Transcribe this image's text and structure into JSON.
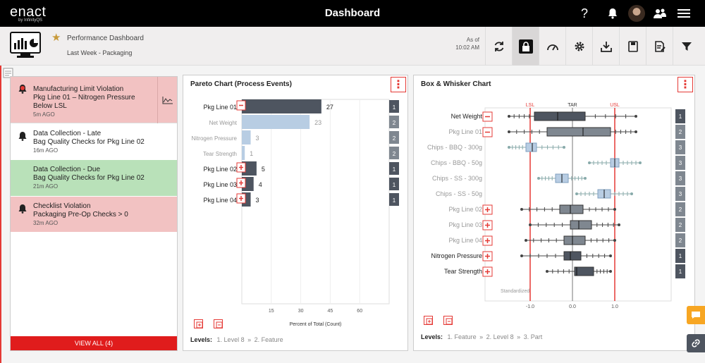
{
  "topbar": {
    "logo": "enact",
    "logo_sub": "by InfinityQS",
    "title": "Dashboard",
    "help_icon": "help-icon"
  },
  "subbar": {
    "title": "Performance Dashboard",
    "filter": "Last Week - Packaging",
    "asof_label": "As of",
    "asof_time": "10:02 AM"
  },
  "alerts": {
    "items": [
      {
        "lines": [
          "Manufacturing Limit Violation",
          "Pkg Line 01 – Nitrogen Pressure",
          "Below LSL"
        ],
        "time": "5m AGO",
        "color": "#f2c2c2",
        "icon": "alarm-bell-icon"
      },
      {
        "lines": [
          "Data Collection - Late",
          "Bag Quality Checks for Pkg Line 02"
        ],
        "time": "16m AGO",
        "color": "#ffffff",
        "icon": "bell-icon"
      },
      {
        "lines": [
          "Data Collection - Due",
          "Bag Quality Checks for Pkg Line 02"
        ],
        "time": "21m AGO",
        "color": "#b9e1b9",
        "icon": ""
      },
      {
        "lines": [
          "Checklist Violation",
          "Packaging Pre-Op Checks > 0"
        ],
        "time": "32m AGO",
        "color": "#f2c2c2",
        "icon": "bell-icon"
      }
    ],
    "view_all": "VIEW ALL  (4)"
  },
  "pareto": {
    "title": "Pareto Chart (Process Events)",
    "xlabel": "Percent of Total (Count)",
    "levels_label": "Levels:",
    "levels": [
      "1. Level 8",
      "2. Feature"
    ],
    "rows": [
      {
        "label": "Pkg Line 01",
        "value": 27,
        "badge": "1",
        "dark": true,
        "expand": "minus"
      },
      {
        "label": "Net Weight",
        "value": 23,
        "badge": "2",
        "dark": false,
        "expand": ""
      },
      {
        "label": "Nitrogen Pressure",
        "value": 3,
        "badge": "2",
        "dark": false,
        "expand": ""
      },
      {
        "label": "Tear Strength",
        "value": 1,
        "badge": "2",
        "dark": false,
        "expand": ""
      },
      {
        "label": "Pkg Line 02",
        "value": 5,
        "badge": "1",
        "dark": true,
        "expand": "plus"
      },
      {
        "label": "Pkg Line 03",
        "value": 4,
        "badge": "1",
        "dark": true,
        "expand": "plus"
      },
      {
        "label": "Pkg Line 04",
        "value": 3,
        "badge": "1",
        "dark": true,
        "expand": "plus"
      }
    ],
    "xticks": [
      15,
      30,
      45,
      60
    ]
  },
  "box": {
    "title": "Box & Whisker Chart",
    "levels_label": "Levels:",
    "levels": [
      "1. Feature",
      "2. Level 8",
      "3. Part"
    ],
    "lsl": "LSL",
    "tar": "TAR",
    "usl": "USL",
    "corner_note": "Standardized",
    "xticks": [
      "-1.0",
      "0.0",
      "1.0"
    ],
    "rows": [
      {
        "label": "Net Weight",
        "badge": "1",
        "tone": "dark",
        "expand": "minus",
        "min": -1.5,
        "q1": -0.9,
        "med": -0.35,
        "q3": 0.3,
        "max": 1.5
      },
      {
        "label": "Pkg Line 01",
        "badge": "2",
        "tone": "mid",
        "expand": "minus",
        "min": -1.5,
        "q1": -0.6,
        "med": 0.25,
        "q3": 0.9,
        "max": 1.5
      },
      {
        "label": "Chips - BBQ - 300g",
        "badge": "3",
        "tone": "light",
        "expand": "",
        "min": -1.5,
        "q1": -1.1,
        "med": -0.95,
        "q3": -0.85,
        "max": -0.2
      },
      {
        "label": "Chips - BBQ - 50g",
        "badge": "3",
        "tone": "light",
        "expand": "",
        "min": 0.4,
        "q1": 0.9,
        "med": 1.0,
        "q3": 1.1,
        "max": 1.6
      },
      {
        "label": "Chips - SS - 300g",
        "badge": "3",
        "tone": "light",
        "expand": "",
        "min": -0.8,
        "q1": -0.4,
        "med": -0.25,
        "q3": -0.1,
        "max": 0.3
      },
      {
        "label": "Chips - SS - 50g",
        "badge": "3",
        "tone": "light",
        "expand": "",
        "min": 0.1,
        "q1": 0.6,
        "med": 0.75,
        "q3": 0.9,
        "max": 1.4
      },
      {
        "label": "Pkg Line 02",
        "badge": "2",
        "tone": "mid",
        "expand": "plus",
        "min": -1.2,
        "q1": -0.3,
        "med": -0.05,
        "q3": 0.25,
        "max": 1.0
      },
      {
        "label": "Pkg Line 03",
        "badge": "2",
        "tone": "mid",
        "expand": "plus",
        "min": -1.0,
        "q1": -0.05,
        "med": 0.15,
        "q3": 0.45,
        "max": 1.1
      },
      {
        "label": "Pkg Line 04",
        "badge": "2",
        "tone": "mid",
        "expand": "plus",
        "min": -1.1,
        "q1": -0.2,
        "med": 0.0,
        "q3": 0.3,
        "max": 1.0
      },
      {
        "label": "Nitrogen Pressure",
        "badge": "1",
        "tone": "dark",
        "expand": "plus",
        "min": -1.2,
        "q1": -0.2,
        "med": -0.05,
        "q3": 0.2,
        "max": 0.9
      },
      {
        "label": "Tear Strength",
        "badge": "1",
        "tone": "dark",
        "expand": "plus",
        "min": -0.6,
        "q1": 0.05,
        "med": 0.1,
        "q3": 0.5,
        "max": 0.9
      }
    ]
  },
  "colors": {
    "dark": "#4e5560",
    "mid": "#7f8790",
    "light": "#b8cde3",
    "red": "#e53935",
    "accent": "#f7a623"
  }
}
